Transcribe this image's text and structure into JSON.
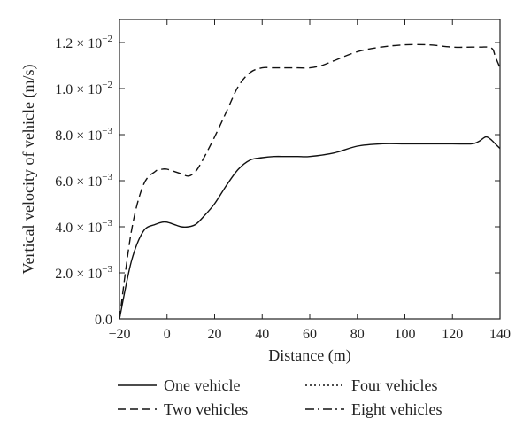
{
  "chart_data": {
    "type": "line",
    "title": "",
    "xlabel": "Distance (m)",
    "ylabel": "Vertical velocity of vehicle (m/s)",
    "xlim": [
      -20,
      140
    ],
    "ylim": [
      0,
      0.013
    ],
    "xticks": [
      {
        "value": -20,
        "label": "−20"
      },
      {
        "value": 0,
        "label": "0"
      },
      {
        "value": 20,
        "label": "20"
      },
      {
        "value": 40,
        "label": "40"
      },
      {
        "value": 60,
        "label": "60"
      },
      {
        "value": 80,
        "label": "80"
      },
      {
        "value": 100,
        "label": "100"
      },
      {
        "value": 120,
        "label": "120"
      },
      {
        "value": 140,
        "label": "140"
      }
    ],
    "yticks": [
      {
        "value": 0,
        "mantissa": "0.0",
        "exp": ""
      },
      {
        "value": 0.002,
        "mantissa": "2.0",
        "exp": "−3"
      },
      {
        "value": 0.004,
        "mantissa": "4.0",
        "exp": "−3"
      },
      {
        "value": 0.006,
        "mantissa": "6.0",
        "exp": "−3"
      },
      {
        "value": 0.008,
        "mantissa": "8.0",
        "exp": "−3"
      },
      {
        "value": 0.01,
        "mantissa": "1.0",
        "exp": "−2"
      },
      {
        "value": 0.012,
        "mantissa": "1.2",
        "exp": "−2"
      }
    ],
    "legend_position": "bottom",
    "series": [
      {
        "name": "One vehicle",
        "style": "solid",
        "x": [
          -20,
          -15,
          -10,
          -5,
          -2,
          0,
          3,
          6,
          9,
          12,
          15,
          20,
          25,
          30,
          35,
          40,
          45,
          50,
          55,
          60,
          70,
          80,
          90,
          100,
          110,
          120,
          128,
          131,
          134,
          136,
          138,
          140
        ],
        "y": [
          0,
          0.0025,
          0.0038,
          0.0041,
          0.0042,
          0.0042,
          0.0041,
          0.004,
          0.004,
          0.0041,
          0.0044,
          0.005,
          0.0058,
          0.0065,
          0.0069,
          0.007,
          0.00705,
          0.00705,
          0.00705,
          0.00705,
          0.0072,
          0.0075,
          0.0076,
          0.0076,
          0.0076,
          0.0076,
          0.0076,
          0.0077,
          0.0079,
          0.0078,
          0.0076,
          0.0074
        ]
      },
      {
        "name": "Two vehicles",
        "style": "dashed",
        "x": [
          -20,
          -15,
          -10,
          -5,
          -2,
          0,
          3,
          6,
          9,
          12,
          15,
          20,
          25,
          30,
          35,
          40,
          45,
          50,
          55,
          60,
          65,
          70,
          80,
          90,
          100,
          110,
          120,
          128,
          132,
          135,
          137,
          138,
          140
        ],
        "y": [
          0,
          0.0038,
          0.0058,
          0.0064,
          0.0065,
          0.0065,
          0.0064,
          0.0063,
          0.0062,
          0.0064,
          0.0069,
          0.0079,
          0.009,
          0.0101,
          0.0107,
          0.0109,
          0.0109,
          0.0109,
          0.0109,
          0.0109,
          0.011,
          0.0112,
          0.0116,
          0.0118,
          0.0119,
          0.0119,
          0.0118,
          0.0118,
          0.0118,
          0.0118,
          0.0117,
          0.0114,
          0.0109
        ]
      },
      {
        "name": "Four vehicles",
        "style": "dotted",
        "x": [],
        "y": []
      },
      {
        "name": "Eight vehicles",
        "style": "dashdot",
        "x": [],
        "y": []
      }
    ]
  }
}
